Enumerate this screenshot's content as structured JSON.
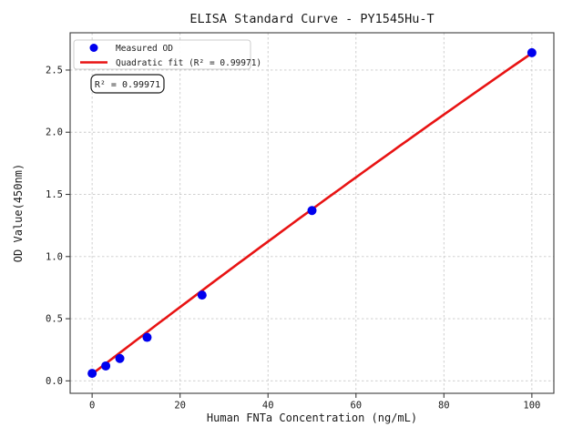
{
  "figure": {
    "background": "#ffffff"
  },
  "chart_data": {
    "type": "scatter",
    "title": "ELISA Standard Curve - PY1545Hu-T",
    "xlabel": "Human FNTa Concentration (ng/mL)",
    "ylabel": "OD Value(450nm)",
    "xlim": [
      -5,
      105
    ],
    "ylim": [
      -0.1,
      2.8
    ],
    "xticks": [
      0,
      20,
      40,
      60,
      80,
      100
    ],
    "yticks": [
      0.0,
      0.5,
      1.0,
      1.5,
      2.0,
      2.5
    ],
    "ytick_decimals": 1,
    "grid": true,
    "grid_style": "dashed",
    "legend": {
      "position": "upper-left",
      "entries": [
        {
          "label": "Measured OD",
          "marker": "circle",
          "color": "#0000ee"
        },
        {
          "label": "Quadratic fit (R² = 0.99971)",
          "marker": "line",
          "color": "#e81313"
        }
      ]
    },
    "annotation": "R² = 0.99971",
    "series": [
      {
        "name": "Measured OD",
        "type": "scatter",
        "color": "#0000ee",
        "x": [
          0,
          3.1,
          6.3,
          12.5,
          25,
          50,
          100
        ],
        "y": [
          0.06,
          0.12,
          0.18,
          0.35,
          0.69,
          1.37,
          2.64
        ]
      },
      {
        "name": "Quadratic fit",
        "type": "line",
        "color": "#e81313",
        "r_squared": 0.99971,
        "fit_coefficients": {
          "a": 0.055,
          "b": 0.0272,
          "c": -1.39e-05
        },
        "x_domain": [
          0,
          100
        ]
      }
    ],
    "colors": {
      "grid": "#c9c9c9",
      "frame": "#3c3c3c",
      "text": "#1a1a1a",
      "annotation_border": "#1a1a1a",
      "legend_border": "#cccccc",
      "background": "#ffffff"
    }
  }
}
